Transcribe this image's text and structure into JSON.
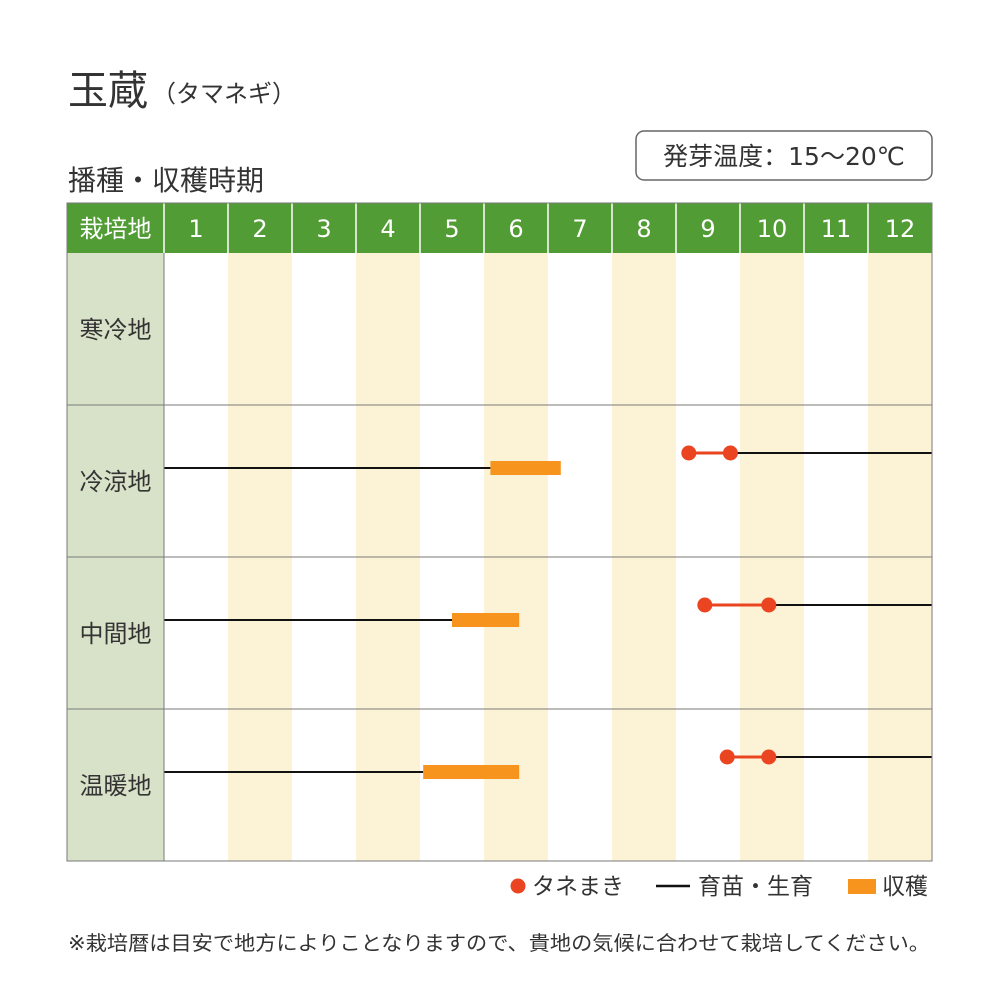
{
  "title": {
    "main": "玉蔵",
    "sub": "（タマネギ）"
  },
  "germination_temp": "発芽温度：15〜20℃",
  "section_title": "播種・収穫時期",
  "colors": {
    "header": "#529c35",
    "row_label_bg": "#d8e2c8",
    "shade": "#fcf3d6",
    "grid": "#7a7a7a",
    "sowing": "#ea4420",
    "growing": "#111111",
    "harvest": "#f7941d"
  },
  "chart_data": {
    "type": "bar",
    "header_label": "栽培地",
    "months": [
      "1",
      "2",
      "3",
      "4",
      "5",
      "6",
      "7",
      "8",
      "9",
      "10",
      "11",
      "12"
    ],
    "legend": {
      "sowing": "タネまき",
      "growing": "育苗・生育",
      "harvest": "収穫"
    },
    "rows": [
      {
        "region": "寒冷地",
        "sowing": null,
        "growing": null,
        "harvest": null
      },
      {
        "region": "冷涼地",
        "sowing": [
          9.2,
          9.85
        ],
        "growing": {
          "from": 9.85,
          "to": 6.1
        },
        "harvest": [
          6.1,
          7.2
        ]
      },
      {
        "region": "中間地",
        "sowing": [
          9.45,
          10.45
        ],
        "growing": {
          "from": 10.45,
          "to": 5.5
        },
        "harvest": [
          5.5,
          6.55
        ]
      },
      {
        "region": "温暖地",
        "sowing": [
          9.8,
          10.45
        ],
        "growing": {
          "from": 10.45,
          "to": 5.05
        },
        "harvest": [
          5.05,
          6.55
        ]
      }
    ]
  },
  "footnote": "※栽培暦は目安で地方によりことなりますので、貴地の気候に合わせて栽培してください。"
}
